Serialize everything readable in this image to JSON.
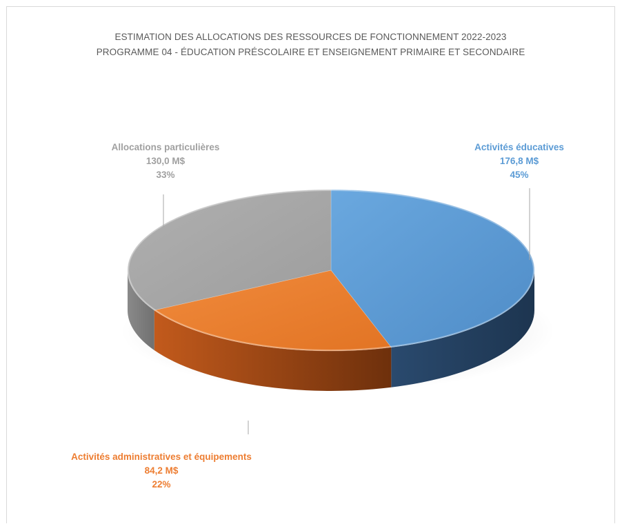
{
  "chart_data": {
    "type": "pie",
    "title": "ESTIMATION DES ALLOCATIONS DES RESSOURCES DE FONCTIONNEMENT 2022-2023",
    "subtitle": "PROGRAMME 04 - ÉDUCATION PRÉSCOLAIRE ET ENSEIGNEMENT PRIMAIRE ET SECONDAIRE",
    "style": "3D",
    "legend": "none",
    "slices": [
      {
        "name": "Activités éducatives",
        "value_label": "176,8 M$",
        "percent_label": "45%",
        "value": 176.8,
        "percent": 45,
        "color": "#5b9bd5",
        "dark": "#213a56",
        "label_color": "#5b9bd5"
      },
      {
        "name": "Activités administratives et équipements",
        "value_label": "84,2 M$",
        "percent_label": "22%",
        "value": 84.2,
        "percent": 22,
        "color": "#ed7d31",
        "dark": "#8a3c10",
        "label_color": "#ed7d31"
      },
      {
        "name": "Allocations particulières",
        "value_label": "130,0 M$",
        "percent_label": "33%",
        "value": 130.0,
        "percent": 33,
        "color": "#a5a5a5",
        "dark": "#6b6b6b",
        "label_color": "#a0a0a0"
      }
    ]
  }
}
